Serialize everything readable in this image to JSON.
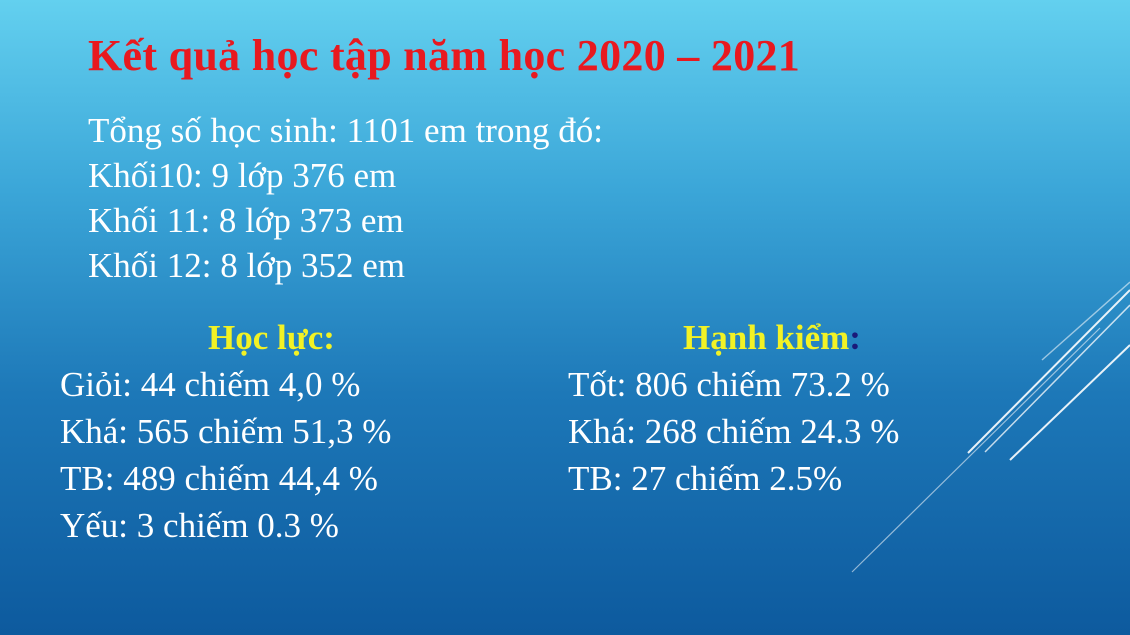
{
  "slide": {
    "title": "Kết quả học tập năm học 2020 – 2021",
    "summary": [
      "Tổng số học sinh: 1101 em trong đó:",
      "Khối10: 9 lớp 376 em",
      "Khối 11: 8 lớp 373 em",
      "Khối 12: 8 lớp 352 em"
    ],
    "hoc_luc": {
      "heading": "Học lực:",
      "items": [
        "Giỏi: 44  chiếm  4,0 %",
        "Khá: 565 chiếm  51,3 %",
        "TB: 489 chiếm 44,4 %",
        "Yếu: 3 chiếm 0.3 %"
      ]
    },
    "hanh_kiem": {
      "heading": "Hạnh kiểm",
      "heading_colon": ":",
      "items": [
        "Tốt: 806 chiếm 73.2 %",
        "Khá: 268 chiếm 24.3 %",
        "TB: 27 chiếm 2.5%"
      ]
    }
  },
  "colors": {
    "title": "#e8191f",
    "heading": "#f2f225",
    "text": "#ffffff",
    "background_top": "#63d0ef",
    "background_bottom": "#0d5a9e"
  }
}
